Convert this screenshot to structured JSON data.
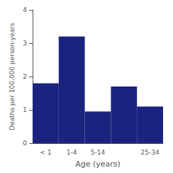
{
  "chart_data": {
    "type": "bar",
    "categories": [
      "< 1",
      "1-4",
      "5-14",
      null,
      "25-34"
    ],
    "values": [
      1.8,
      3.2,
      0.95,
      1.7,
      1.1
    ],
    "color": "#1a237e",
    "xlabel": "Age (years)",
    "ylabel": "Deaths per 100,000 person-years",
    "ylim": [
      0,
      4
    ],
    "yticks": [
      0,
      1,
      2,
      3,
      4
    ],
    "grid": false
  }
}
